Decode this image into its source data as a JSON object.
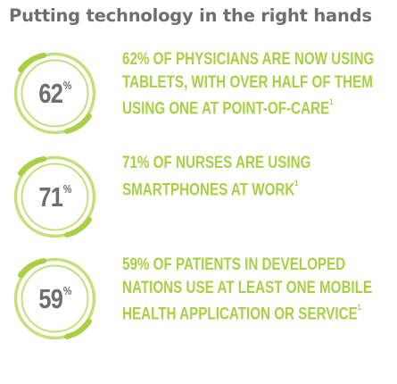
{
  "title": "Putting technology in the right hands",
  "colors": {
    "accent_green": "#a8cf45",
    "gray_text": "#6d6e71",
    "ring_green": "#c5e07a"
  },
  "stats": [
    {
      "value": "62",
      "unit": "%",
      "text": "62% of physicians are now using tablets, with over half of them using one at point-of-care",
      "footnote": "1"
    },
    {
      "value": "71",
      "unit": "%",
      "text": "71% of nurses are using smartphones at work",
      "footnote": "1"
    },
    {
      "value": "59",
      "unit": "%",
      "text": "59% of patients in developed nations use at least one mobile health application or service",
      "footnote": "1"
    }
  ]
}
